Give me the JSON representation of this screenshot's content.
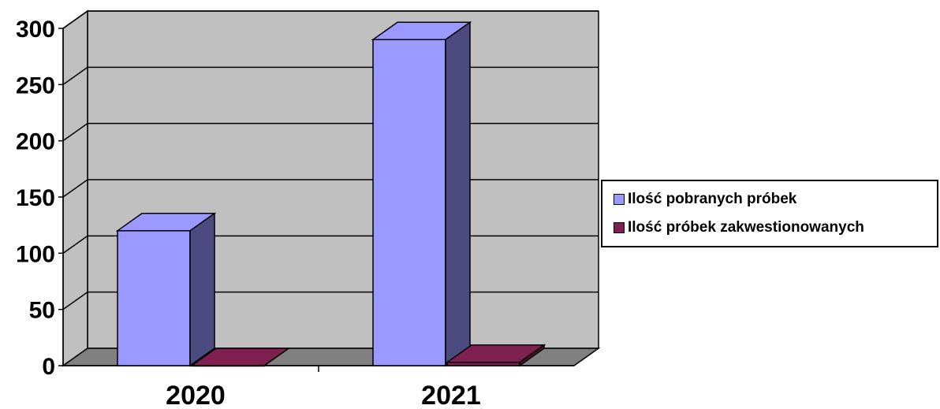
{
  "chart_data": {
    "type": "bar",
    "categories": [
      "2020",
      "2021"
    ],
    "series": [
      {
        "name": "Ilość pobranych próbek",
        "values": [
          120,
          290
        ],
        "color": "#9999ff",
        "side_color": "#4b4b80"
      },
      {
        "name": "Ilość próbek zakwestionowanych",
        "values": [
          0,
          3
        ],
        "color": "#802050",
        "side_color": "#55102f"
      }
    ],
    "ylim": [
      0,
      300
    ],
    "yticks": [
      "0",
      "50",
      "100",
      "150",
      "200",
      "250",
      "300"
    ],
    "grid": true,
    "three_d": true,
    "wall_color": "#c0c0c0",
    "floor_color": "#808080",
    "legend_position": "right"
  }
}
